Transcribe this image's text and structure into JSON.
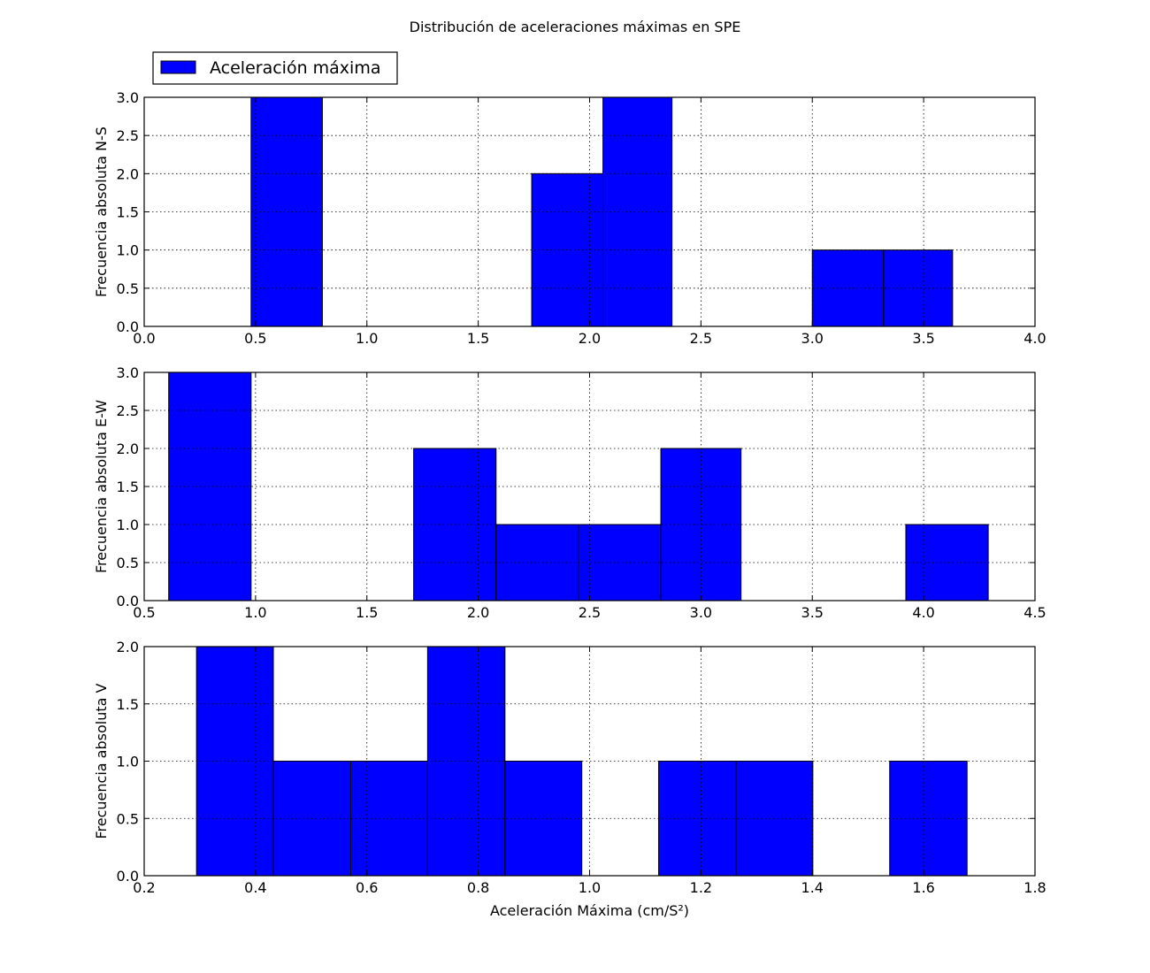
{
  "figure": {
    "title": "Distribución de aceleraciones máximas en SPE",
    "legend_label": "Aceleración máxima",
    "legend_placement": "top-left, above first panel",
    "colors": {
      "bar": "#0000ff",
      "edge": "#000000",
      "grid": "#000000",
      "background": "#ffffff"
    }
  },
  "chart_data": [
    {
      "type": "bar",
      "subtype": "histogram",
      "ylabel": "Frecuencia absoluta N-S",
      "xlabel": "",
      "xlim": [
        0.0,
        4.0
      ],
      "ylim": [
        0.0,
        3.0
      ],
      "xticks": [
        "0.0",
        "0.5",
        "1.0",
        "1.5",
        "2.0",
        "2.5",
        "3.0",
        "3.5",
        "4.0"
      ],
      "yticks": [
        "0.0",
        "0.5",
        "1.0",
        "1.5",
        "2.0",
        "2.5",
        "3.0"
      ],
      "grid": true,
      "bins": [
        {
          "start": 0.48,
          "end": 0.8,
          "count": 3
        },
        {
          "start": 0.8,
          "end": 1.11,
          "count": 0
        },
        {
          "start": 1.11,
          "end": 1.43,
          "count": 0
        },
        {
          "start": 1.43,
          "end": 1.74,
          "count": 0
        },
        {
          "start": 1.74,
          "end": 2.06,
          "count": 2
        },
        {
          "start": 2.06,
          "end": 2.37,
          "count": 3
        },
        {
          "start": 2.37,
          "end": 2.69,
          "count": 0
        },
        {
          "start": 2.69,
          "end": 3.0,
          "count": 0
        },
        {
          "start": 3.0,
          "end": 3.32,
          "count": 1
        },
        {
          "start": 3.32,
          "end": 3.63,
          "count": 1
        }
      ]
    },
    {
      "type": "bar",
      "subtype": "histogram",
      "ylabel": "Frecuencia absoluta E-W",
      "xlabel": "",
      "xlim": [
        0.5,
        4.5
      ],
      "ylim": [
        0.0,
        3.0
      ],
      "xticks": [
        "0.5",
        "1.0",
        "1.5",
        "2.0",
        "2.5",
        "3.0",
        "3.5",
        "4.0",
        "4.5"
      ],
      "yticks": [
        "0.0",
        "0.5",
        "1.0",
        "1.5",
        "2.0",
        "2.5",
        "3.0"
      ],
      "grid": true,
      "bins": [
        {
          "start": 0.61,
          "end": 0.98,
          "count": 3
        },
        {
          "start": 0.98,
          "end": 1.34,
          "count": 0
        },
        {
          "start": 1.34,
          "end": 1.71,
          "count": 0
        },
        {
          "start": 1.71,
          "end": 2.08,
          "count": 2
        },
        {
          "start": 2.08,
          "end": 2.45,
          "count": 1
        },
        {
          "start": 2.45,
          "end": 2.82,
          "count": 1
        },
        {
          "start": 2.82,
          "end": 3.18,
          "count": 2
        },
        {
          "start": 3.18,
          "end": 3.55,
          "count": 0
        },
        {
          "start": 3.55,
          "end": 3.92,
          "count": 0
        },
        {
          "start": 3.92,
          "end": 4.29,
          "count": 1
        }
      ]
    },
    {
      "type": "bar",
      "subtype": "histogram",
      "ylabel": "Frecuencia absoluta V",
      "xlabel": "Aceleración Máxima (cm/S²)",
      "xlim": [
        0.2,
        1.8
      ],
      "ylim": [
        0.0,
        2.0
      ],
      "xticks": [
        "0.2",
        "0.4",
        "0.6",
        "0.8",
        "1.0",
        "1.2",
        "1.4",
        "1.6",
        "1.8"
      ],
      "yticks": [
        "0.0",
        "0.5",
        "1.0",
        "1.5",
        "2.0"
      ],
      "grid": true,
      "bins": [
        {
          "start": 0.294,
          "end": 0.432,
          "count": 2
        },
        {
          "start": 0.432,
          "end": 0.571,
          "count": 1
        },
        {
          "start": 0.571,
          "end": 0.709,
          "count": 1
        },
        {
          "start": 0.709,
          "end": 0.848,
          "count": 2
        },
        {
          "start": 0.848,
          "end": 0.986,
          "count": 1
        },
        {
          "start": 0.986,
          "end": 1.124,
          "count": 0
        },
        {
          "start": 1.124,
          "end": 1.263,
          "count": 1
        },
        {
          "start": 1.263,
          "end": 1.401,
          "count": 1
        },
        {
          "start": 1.401,
          "end": 1.539,
          "count": 0
        },
        {
          "start": 1.539,
          "end": 1.678,
          "count": 1
        }
      ]
    }
  ]
}
